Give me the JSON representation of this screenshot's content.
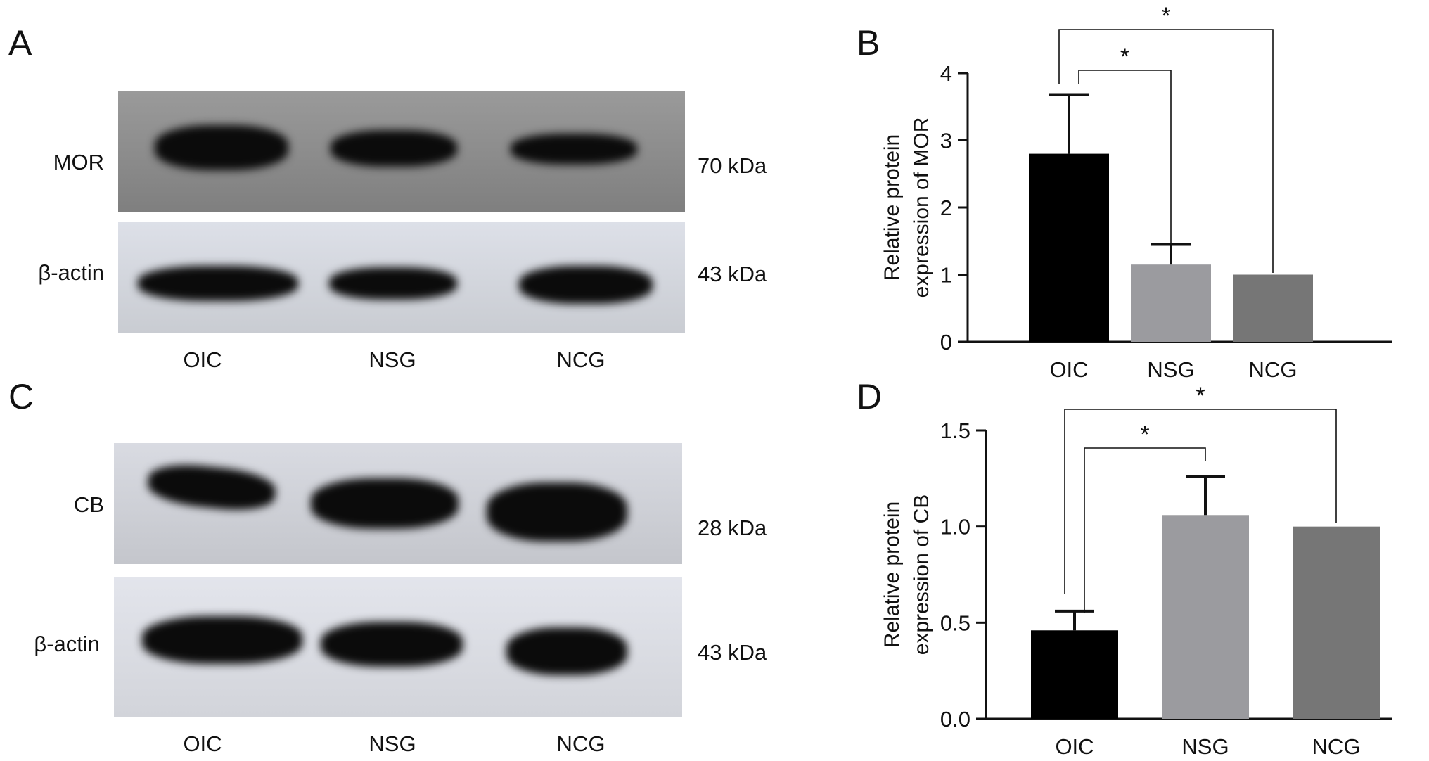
{
  "figure": {
    "panels": {
      "A": {
        "letter": "A",
        "blots": [
          {
            "protein": "MOR",
            "size": "70 kDa",
            "band_intensity": [
              1.0,
              0.9,
              0.85
            ]
          },
          {
            "protein": "β-actin",
            "size": "43 kDa",
            "band_intensity": [
              1.0,
              1.0,
              1.0
            ]
          }
        ],
        "lanes": [
          "OIC",
          "NSG",
          "NCG"
        ]
      },
      "C": {
        "letter": "C",
        "blots": [
          {
            "protein": "CB",
            "size": "28 kDa",
            "band_intensity": [
              0.8,
              0.95,
              1.0
            ]
          },
          {
            "protein": "β-actin",
            "size": "43 kDa",
            "band_intensity": [
              1.0,
              1.0,
              1.0
            ]
          }
        ],
        "lanes": [
          "OIC",
          "NSG",
          "NCG"
        ]
      },
      "B": {
        "letter": "B"
      },
      "D": {
        "letter": "D"
      }
    },
    "colors": {
      "OIC": "#000000",
      "NSG": "#9b9b9f",
      "NCG": "#767676",
      "blot_bg": "#8d8d8d",
      "blot_bg_light": "#d3d6dc"
    }
  },
  "chart_data": [
    {
      "panel": "B",
      "type": "bar",
      "categories": [
        "OIC",
        "NSG",
        "NCG"
      ],
      "values": [
        2.8,
        1.15,
        1.0
      ],
      "error": [
        0.88,
        0.3,
        0.0
      ],
      "ylabel_line1": "Relative protein",
      "ylabel_line2": "expression of MOR",
      "ylim": [
        0,
        4
      ],
      "yticks": [
        "0",
        "1",
        "2",
        "3",
        "4"
      ],
      "ytick_values": [
        0,
        1,
        2,
        3,
        4
      ],
      "significance": [
        {
          "from": "OIC",
          "to": "NSG",
          "label": "*"
        },
        {
          "from": "OIC",
          "to": "NCG",
          "label": "*"
        }
      ]
    },
    {
      "panel": "D",
      "type": "bar",
      "categories": [
        "OIC",
        "NSG",
        "NCG"
      ],
      "values": [
        0.46,
        1.06,
        1.0
      ],
      "error": [
        0.1,
        0.2,
        0.0
      ],
      "ylabel_line1": "Relative protein",
      "ylabel_line2": "expression of CB",
      "ylim": [
        0,
        1.5
      ],
      "yticks": [
        "0.0",
        "0.5",
        "1.0",
        "1.5"
      ],
      "ytick_values": [
        0,
        0.5,
        1.0,
        1.5
      ],
      "significance": [
        {
          "from": "OIC",
          "to": "NSG",
          "label": "*"
        },
        {
          "from": "OIC",
          "to": "NCG",
          "label": "*"
        }
      ]
    }
  ]
}
